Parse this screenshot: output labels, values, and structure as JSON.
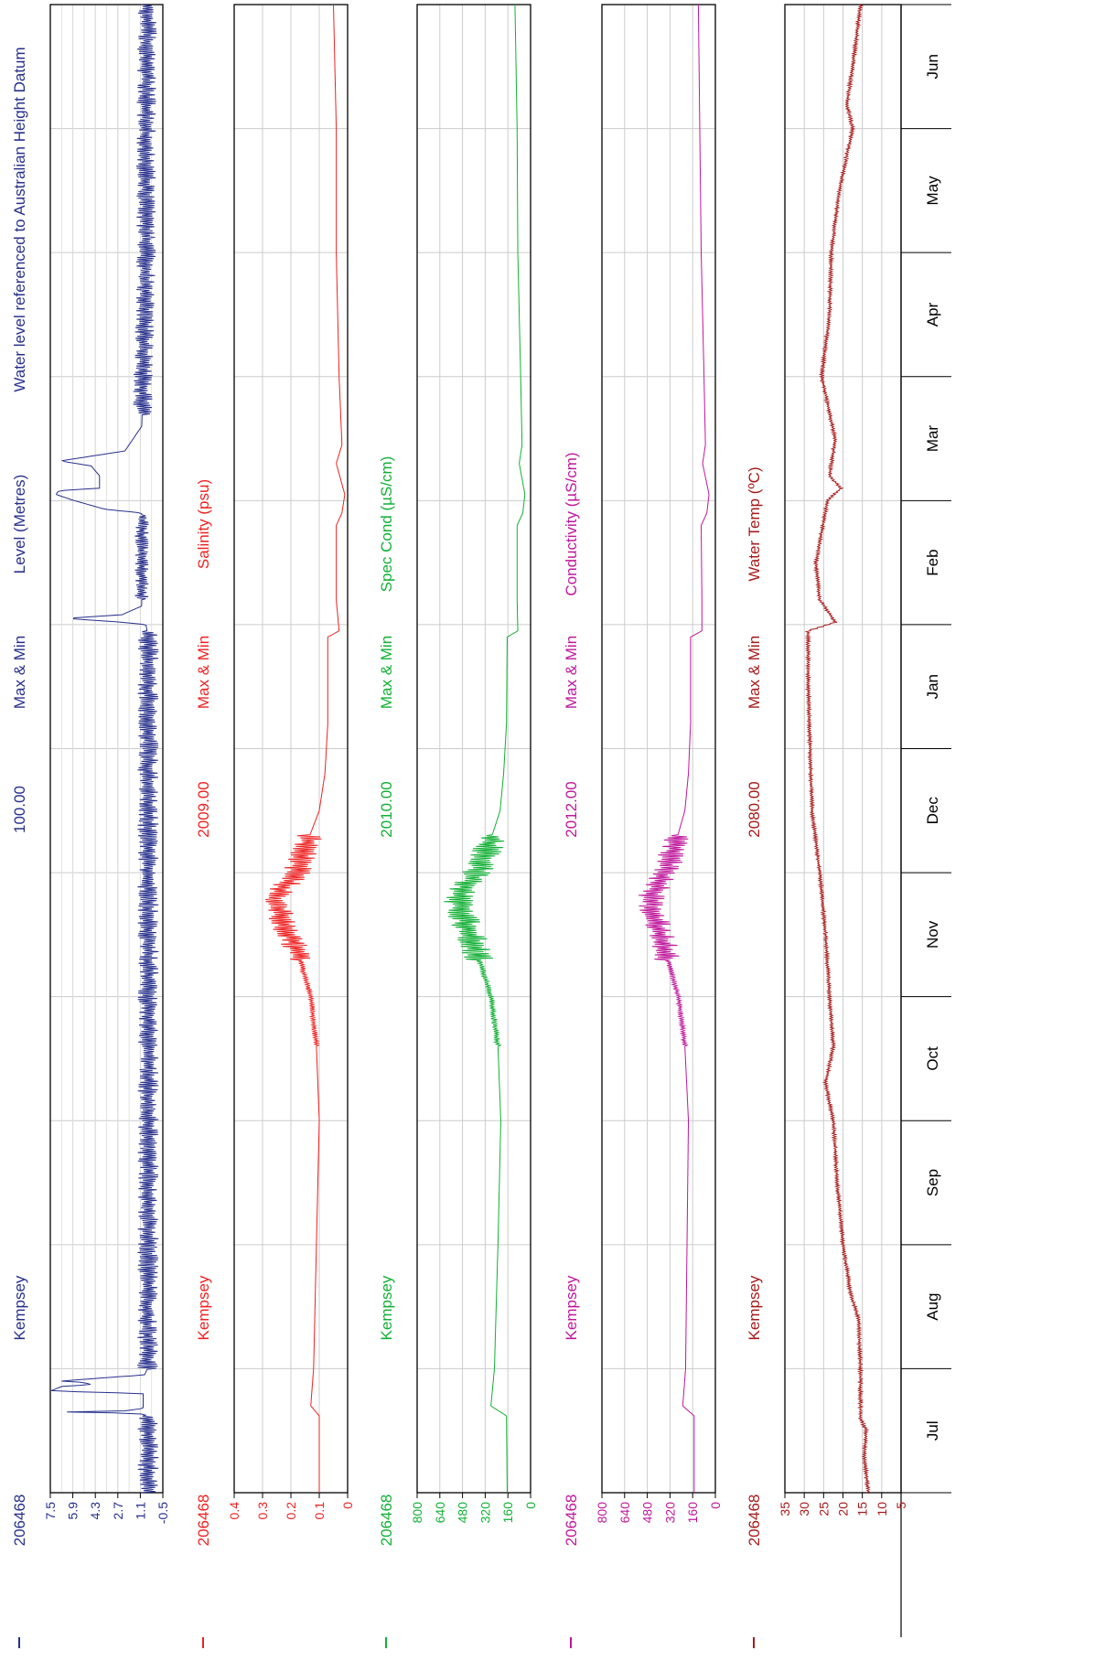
{
  "chart_data": [
    {
      "type": "line",
      "station": "206468",
      "site": "Kempsey",
      "variable_code": "100.00",
      "stat": "Max & Min",
      "ylabel": "Level (Metres)",
      "note": "Water level referenced to Australian Height Datum",
      "color": "#27308c",
      "ylim": [
        -0.5,
        7.5
      ],
      "yticks": [
        "7.5",
        "5.9",
        "4.3",
        "2.7",
        "1.1",
        "-0.5"
      ],
      "months": [
        "Jul",
        "Aug",
        "Sep",
        "Oct",
        "Nov",
        "Dec",
        "Jan",
        "Feb",
        "Mar",
        "Apr",
        "May",
        "Jun"
      ],
      "baseline": [
        [
          0,
          0.55
        ],
        [
          0.5,
          0.55
        ],
        [
          0.62,
          0.55
        ],
        [
          0.64,
          1.2
        ],
        [
          0.65,
          7.0
        ],
        [
          0.66,
          2.2
        ],
        [
          0.68,
          0.9
        ],
        [
          0.8,
          0.9
        ],
        [
          0.82,
          7.5
        ],
        [
          0.86,
          6.6
        ],
        [
          0.87,
          4.5
        ],
        [
          0.89,
          5.2
        ],
        [
          0.9,
          6.7
        ],
        [
          0.92,
          4.5
        ],
        [
          0.95,
          0.8
        ],
        [
          1.0,
          0.6
        ],
        [
          1.5,
          0.6
        ],
        [
          2.0,
          0.55
        ],
        [
          3.0,
          0.55
        ],
        [
          4.0,
          0.55
        ],
        [
          5.0,
          0.55
        ],
        [
          6.0,
          0.55
        ],
        [
          6.9,
          0.55
        ],
        [
          7.0,
          0.7
        ],
        [
          7.02,
          2.5
        ],
        [
          7.05,
          6.4
        ],
        [
          7.08,
          2.4
        ],
        [
          7.15,
          1.0
        ],
        [
          7.9,
          1.0
        ],
        [
          7.93,
          3.6
        ],
        [
          8.0,
          5.8
        ],
        [
          8.05,
          7.1
        ],
        [
          8.08,
          6.9
        ],
        [
          8.1,
          4.0
        ],
        [
          8.2,
          4.0
        ],
        [
          8.28,
          4.6
        ],
        [
          8.32,
          6.8
        ],
        [
          8.4,
          2.2
        ],
        [
          8.6,
          1.0
        ],
        [
          9.0,
          0.9
        ],
        [
          10.0,
          0.7
        ],
        [
          11.0,
          0.7
        ],
        [
          12.0,
          0.6
        ]
      ],
      "noise": 0.75,
      "noise_segments": [
        [
          0,
          0.55,
          0.62,
          0.75
        ],
        [
          1.0,
          6.95,
          0.75
        ],
        [
          7.2,
          7.88,
          0.5
        ],
        [
          8.7,
          12.0,
          0.7
        ]
      ]
    },
    {
      "type": "line",
      "station": "206468",
      "site": "Kempsey",
      "variable_code": "2009.00",
      "stat": "Max & Min",
      "ylabel": "Salinity (psu)",
      "color": "#ee2222",
      "ylim": [
        0,
        0.4
      ],
      "yticks": [
        "0.4",
        "0.3",
        "0.2",
        "0.1",
        "0"
      ],
      "months": [
        "Jul",
        "Aug",
        "Sep",
        "Oct",
        "Nov",
        "Dec",
        "Jan",
        "Feb",
        "Mar",
        "Apr",
        "May",
        "Jun"
      ],
      "baseline": [
        [
          0,
          0.1
        ],
        [
          0.62,
          0.1
        ],
        [
          0.7,
          0.13
        ],
        [
          1.0,
          0.12
        ],
        [
          2.0,
          0.11
        ],
        [
          3.0,
          0.1
        ],
        [
          3.6,
          0.11
        ],
        [
          4.0,
          0.13
        ],
        [
          4.4,
          0.18
        ],
        [
          4.6,
          0.23
        ],
        [
          4.8,
          0.26
        ],
        [
          5.0,
          0.18
        ],
        [
          5.2,
          0.15
        ],
        [
          5.5,
          0.1
        ],
        [
          5.8,
          0.08
        ],
        [
          6.2,
          0.07
        ],
        [
          6.9,
          0.07
        ],
        [
          6.95,
          0.03
        ],
        [
          7.2,
          0.04
        ],
        [
          7.8,
          0.04
        ],
        [
          7.9,
          0.02
        ],
        [
          8.05,
          0.01
        ],
        [
          8.3,
          0.04
        ],
        [
          8.45,
          0.02
        ],
        [
          9.0,
          0.03
        ],
        [
          10.0,
          0.04
        ],
        [
          11.0,
          0.04
        ],
        [
          12.0,
          0.05
        ]
      ],
      "noise": 0.0,
      "noise_segments": [
        [
          3.6,
          4.3,
          0.01
        ],
        [
          4.3,
          5.3,
          0.05
        ]
      ]
    },
    {
      "type": "line",
      "station": "206468",
      "site": "Kempsey",
      "variable_code": "2010.00",
      "stat": "Max & Min",
      "ylabel": "Spec Cond (µS/cm)",
      "color": "#12b035",
      "ylim": [
        0,
        800
      ],
      "yticks": [
        "800",
        "640",
        "480",
        "320",
        "160",
        "0"
      ],
      "months": [
        "Jul",
        "Aug",
        "Sep",
        "Oct",
        "Nov",
        "Dec",
        "Jan",
        "Feb",
        "Mar",
        "Apr",
        "May",
        "Jun"
      ],
      "baseline": [
        [
          0,
          165
        ],
        [
          0.62,
          170
        ],
        [
          0.7,
          280
        ],
        [
          1.0,
          255
        ],
        [
          2.0,
          230
        ],
        [
          3.0,
          210
        ],
        [
          3.6,
          230
        ],
        [
          4.0,
          280
        ],
        [
          4.4,
          390
        ],
        [
          4.6,
          460
        ],
        [
          4.8,
          510
        ],
        [
          5.0,
          380
        ],
        [
          5.2,
          300
        ],
        [
          5.5,
          215
        ],
        [
          5.8,
          190
        ],
        [
          6.2,
          170
        ],
        [
          6.9,
          165
        ],
        [
          6.95,
          90
        ],
        [
          7.2,
          95
        ],
        [
          7.8,
          95
        ],
        [
          7.9,
          55
        ],
        [
          8.05,
          40
        ],
        [
          8.3,
          80
        ],
        [
          8.45,
          60
        ],
        [
          9.0,
          70
        ],
        [
          10.0,
          90
        ],
        [
          11.0,
          95
        ],
        [
          12.0,
          110
        ]
      ],
      "noise": 0.0,
      "noise_segments": [
        [
          3.6,
          4.3,
          22
        ],
        [
          4.3,
          5.3,
          110
        ]
      ]
    },
    {
      "type": "line",
      "station": "206468",
      "site": "Kempsey",
      "variable_code": "2012.00",
      "stat": "Max & Min",
      "ylabel": "Conductivity (µS/cm)",
      "color": "#c0179c",
      "ylim": [
        0,
        800
      ],
      "yticks": [
        "800",
        "640",
        "480",
        "320",
        "160",
        "0"
      ],
      "months": [
        "Jul",
        "Aug",
        "Sep",
        "Oct",
        "Nov",
        "Dec",
        "Jan",
        "Feb",
        "Mar",
        "Apr",
        "May",
        "Jun"
      ],
      "baseline": [
        [
          0,
          150
        ],
        [
          0.62,
          150
        ],
        [
          0.7,
          230
        ],
        [
          1.0,
          210
        ],
        [
          2.0,
          200
        ],
        [
          3.0,
          190
        ],
        [
          3.6,
          215
        ],
        [
          4.0,
          260
        ],
        [
          4.4,
          360
        ],
        [
          4.6,
          420
        ],
        [
          4.8,
          460
        ],
        [
          5.0,
          360
        ],
        [
          5.2,
          290
        ],
        [
          5.5,
          215
        ],
        [
          5.8,
          190
        ],
        [
          6.2,
          175
        ],
        [
          6.9,
          175
        ],
        [
          6.95,
          95
        ],
        [
          7.2,
          95
        ],
        [
          7.8,
          100
        ],
        [
          7.9,
          60
        ],
        [
          8.05,
          45
        ],
        [
          8.3,
          90
        ],
        [
          8.45,
          70
        ],
        [
          9.0,
          80
        ],
        [
          10.0,
          100
        ],
        [
          11.0,
          110
        ],
        [
          12.0,
          120
        ]
      ],
      "noise": 0.0,
      "noise_segments": [
        [
          3.6,
          4.3,
          20
        ],
        [
          4.3,
          5.3,
          100
        ]
      ]
    },
    {
      "type": "line",
      "station": "206468",
      "site": "Kempsey",
      "variable_code": "2080.00",
      "stat": "Max & Min",
      "ylabel": "Water Temp (ºC)",
      "color": "#a61a1a",
      "ylim": [
        5,
        35
      ],
      "yticks": [
        "35",
        "30",
        "25",
        "20",
        "15",
        "10",
        "5"
      ],
      "months": [
        "Jul",
        "Aug",
        "Sep",
        "Oct",
        "Nov",
        "Dec",
        "Jan",
        "Feb",
        "Mar",
        "Apr",
        "May",
        "Jun"
      ],
      "baseline": [
        [
          0,
          13.5
        ],
        [
          0.3,
          14.5
        ],
        [
          0.5,
          14.0
        ],
        [
          0.6,
          15.5
        ],
        [
          1.0,
          15.5
        ],
        [
          1.4,
          16.0
        ],
        [
          1.6,
          18.0
        ],
        [
          2.0,
          20.0
        ],
        [
          2.5,
          21.5
        ],
        [
          3.0,
          22.5
        ],
        [
          3.3,
          24.5
        ],
        [
          3.6,
          22.5
        ],
        [
          4.0,
          23.5
        ],
        [
          4.5,
          24.5
        ],
        [
          5.0,
          26.0
        ],
        [
          5.5,
          28.0
        ],
        [
          6.0,
          28.5
        ],
        [
          6.5,
          29.0
        ],
        [
          6.95,
          29.0
        ],
        [
          7.02,
          22.0
        ],
        [
          7.2,
          26.0
        ],
        [
          7.5,
          27.0
        ],
        [
          8.0,
          24.0
        ],
        [
          8.1,
          20.5
        ],
        [
          8.2,
          23.5
        ],
        [
          8.5,
          22.0
        ],
        [
          9.0,
          25.5
        ],
        [
          9.5,
          23.5
        ],
        [
          10.0,
          23.0
        ],
        [
          10.5,
          21.0
        ],
        [
          11.0,
          17.5
        ],
        [
          11.2,
          19.0
        ],
        [
          11.5,
          17.5
        ],
        [
          12.0,
          15.5
        ]
      ],
      "noise": 0.5,
      "noise_segments": [
        [
          0,
          12.0,
          0.5
        ]
      ]
    }
  ],
  "month_labels": [
    "Jul",
    "Aug",
    "Sep",
    "Oct",
    "Nov",
    "Dec",
    "Jan",
    "Feb",
    "Mar",
    "Apr",
    "May",
    "Jun"
  ],
  "colors": {
    "level": "#27308c",
    "salinity": "#ee2222",
    "spec_cond": "#12b035",
    "conductivity": "#c0179c",
    "water_temp": "#a61a1a",
    "grid": "#cccccc"
  }
}
